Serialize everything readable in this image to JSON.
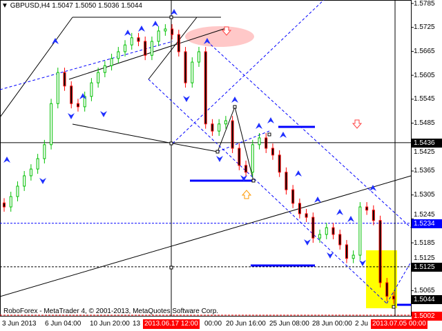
{
  "header": {
    "menu_icon": "triangle-down-icon",
    "title": "GBPUSD,H4 1.5047 1.5050 1.5036 1.5044"
  },
  "footer": {
    "copyright": "RoboForex - MetaTrader 4, © 2001-2013, MetaQuotes Software Corp."
  },
  "price_axis": {
    "ticks": [
      "1.5785",
      "1.5725",
      "1.5665",
      "1.5605",
      "1.5545",
      "1.5485",
      "1.5425",
      "1.5365",
      "1.5305",
      "1.5245",
      "1.5185",
      "1.5125",
      "1.5065"
    ],
    "tick_values": [
      1.5785,
      1.5725,
      1.5665,
      1.5605,
      1.5545,
      1.5485,
      1.5425,
      1.5365,
      1.5305,
      1.5245,
      1.5185,
      1.5125,
      1.5065
    ],
    "range": [
      1.5002,
      1.5785
    ],
    "tags": [
      {
        "label": "1.5436",
        "value": 1.5436,
        "color": "#000000"
      },
      {
        "label": "1.5234",
        "value": 1.5234,
        "color": "#0000ff"
      },
      {
        "label": "1.5125",
        "value": 1.5125,
        "color": "#000000"
      },
      {
        "label": "1.5044",
        "value": 1.5044,
        "color": "#000000"
      },
      {
        "label": "1.5002",
        "value": 1.5002,
        "color": "#ff0000"
      }
    ]
  },
  "time_axis": {
    "labels": [
      "3 Jun 2013",
      "6 Jun 04:00",
      "10 Jun 20:00",
      "13",
      "00:00",
      "20 Jun 16:00",
      "25 Jun 08:00",
      "28 Jun 00:00",
      "2 Ju"
    ],
    "highlighted": [
      "2013.06.17 12:00",
      "2013.07.05 00:00"
    ],
    "highlight_color": "#ff0000"
  },
  "chart_data": {
    "type": "candlestick",
    "symbol": "GBPUSD",
    "timeframe": "H4",
    "last": {
      "open": 1.5047,
      "high": 1.505,
      "low": 1.5036,
      "close": 1.5044
    },
    "closes": [
      1.5275,
      1.5301,
      1.5327,
      1.5353,
      1.537,
      1.5396,
      1.5431,
      1.5534,
      1.5612,
      1.5578,
      1.5534,
      1.5526,
      1.5552,
      1.5586,
      1.5612,
      1.5629,
      1.5647,
      1.5664,
      1.5681,
      1.5699,
      1.569,
      1.5655,
      1.569,
      1.5716,
      1.5721,
      1.5707,
      1.5664,
      1.5586,
      1.5638,
      1.5664,
      1.5483,
      1.5465,
      1.5483,
      1.5491,
      1.5422,
      1.5379,
      1.5362,
      1.5431,
      1.5448,
      1.5422,
      1.5405,
      1.5362,
      1.5318,
      1.5284,
      1.5258,
      1.5249,
      1.5197,
      1.5206,
      1.5223,
      1.5206,
      1.518,
      1.5146,
      1.5154,
      1.5275,
      1.5267,
      1.5241,
      1.5085,
      1.5051,
      1.5044
    ],
    "colors": {
      "bull": "#00c000",
      "bear": "#ff0000",
      "grid": "#000000",
      "levels": "#0000ff",
      "target_zone": "#ffff00",
      "reversal_zone": "#ffc8c8"
    },
    "horizontal_levels": [
      1.5436,
      1.5234,
      1.5125,
      1.5002
    ],
    "signals": [
      {
        "type": "sell-arrow",
        "color": "#ff4040"
      },
      {
        "type": "sell-arrow",
        "color": "#ff4040"
      },
      {
        "type": "buy-arrow",
        "color": "#ff9900"
      }
    ]
  }
}
